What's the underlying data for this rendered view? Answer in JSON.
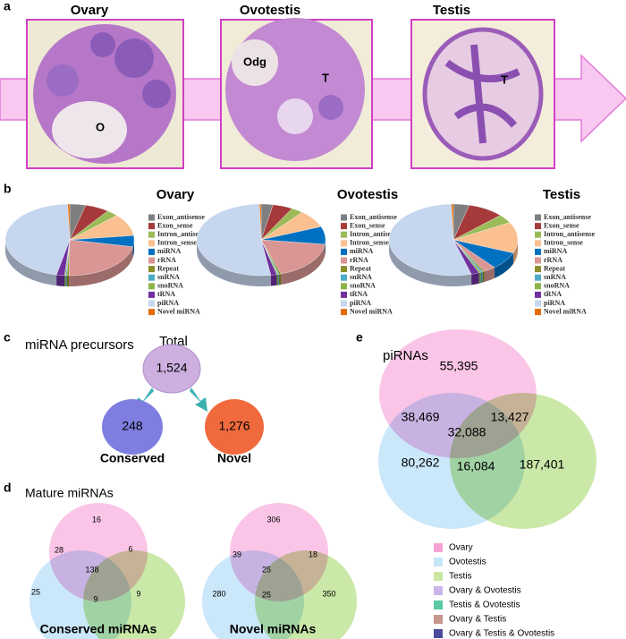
{
  "panel_a": {
    "label": "a",
    "titles": [
      "Ovary",
      "Ovotestis",
      "Testis"
    ],
    "image_labels": [
      "O",
      "Odg",
      "T",
      "T"
    ]
  },
  "panel_b": {
    "label": "b"
  },
  "chart_data": [
    {
      "type": "pie",
      "title": "Ovary",
      "categories": [
        "Exon_antisense",
        "Exon_sense",
        "Intron_antisense",
        "Intron_sense",
        "miRNA",
        "rRNA",
        "Repeat",
        "snRNA",
        "snoRNA",
        "tRNA",
        "piRNA",
        "Novel miRNA"
      ],
      "values": [
        4,
        6,
        3,
        10,
        5,
        22,
        0.5,
        0.3,
        0.3,
        2,
        46,
        0.5
      ],
      "colors": [
        "#7f7f7f",
        "#a63a3a",
        "#9bbb59",
        "#fac090",
        "#0070c0",
        "#d99694",
        "#8e8e2a",
        "#4bacc6",
        "#8db34a",
        "#7030a0",
        "#c6d6ee",
        "#e46c0a"
      ]
    },
    {
      "type": "pie",
      "title": "Ovotestis",
      "categories": [
        "Exon_antisense",
        "Exon_sense",
        "Intron_antisense",
        "Intron_sense",
        "miRNA",
        "rRNA",
        "Repeat",
        "snRNA",
        "snoRNA",
        "tRNA",
        "piRNA",
        "Novel miRNA"
      ],
      "values": [
        3,
        5,
        3,
        8,
        8,
        18,
        0.5,
        0.3,
        0.3,
        1.5,
        52,
        0.4
      ],
      "colors": [
        "#7f7f7f",
        "#a63a3a",
        "#9bbb59",
        "#fac090",
        "#0070c0",
        "#d99694",
        "#8e8e2a",
        "#4bacc6",
        "#8db34a",
        "#7030a0",
        "#c6d6ee",
        "#e46c0a"
      ]
    },
    {
      "type": "pie",
      "title": "Testis",
      "categories": [
        "Exon_antisense",
        "Exon_sense",
        "Intron_antisense",
        "Intron_sense",
        "miRNA",
        "rRNA",
        "Repeat",
        "snRNA",
        "snoRNA",
        "tRNA",
        "piRNA",
        "Novel miRNA"
      ],
      "values": [
        4,
        9,
        4,
        14,
        8,
        3,
        0.5,
        0.5,
        0.5,
        2,
        54,
        0.5
      ],
      "colors": [
        "#7f7f7f",
        "#a63a3a",
        "#9bbb59",
        "#fac090",
        "#0070c0",
        "#d99694",
        "#8e8e2a",
        "#4bacc6",
        "#8db34a",
        "#7030a0",
        "#c6d6ee",
        "#e46c0a"
      ]
    }
  ],
  "panel_c": {
    "label": "c",
    "title": "miRNA precursors",
    "total": {
      "label": "Total",
      "value": "1,524"
    },
    "conserved": {
      "label": "Conserved",
      "value": "248"
    },
    "novel": {
      "label": "Novel",
      "value": "1,276"
    }
  },
  "panel_d": {
    "label": "d",
    "title": "Mature miRNAs",
    "venns": [
      {
        "title": "Conserved miRNAs",
        "regions": [
          "16",
          "28",
          "6",
          "138",
          "25",
          "9",
          "9"
        ]
      },
      {
        "title": "Novel miRNAs",
        "regions": [
          "306",
          "39",
          "18",
          "25",
          "280",
          "25",
          "350"
        ]
      }
    ]
  },
  "panel_e": {
    "label": "e",
    "title": "piRNAs",
    "regions": [
      "55,395",
      "38,469",
      "13,427",
      "32,088",
      "80,262",
      "16,084",
      "187,401"
    ]
  },
  "legend": {
    "entries": [
      {
        "name": "Ovary",
        "color": "#f5a3d3"
      },
      {
        "name": "Ovotestis",
        "color": "#c6e7f8"
      },
      {
        "name": "Testis",
        "color": "#cbe6a2"
      },
      {
        "name": "Ovary & Ovotestis",
        "color": "#c9b5ea"
      },
      {
        "name": "Testis & Ovotestis",
        "color": "#58c9a2"
      },
      {
        "name": "Ovary & Testis",
        "color": "#c8968c"
      },
      {
        "name": "Ovary & Testis & Ovotestis",
        "color": "#4b4b9a"
      }
    ]
  }
}
